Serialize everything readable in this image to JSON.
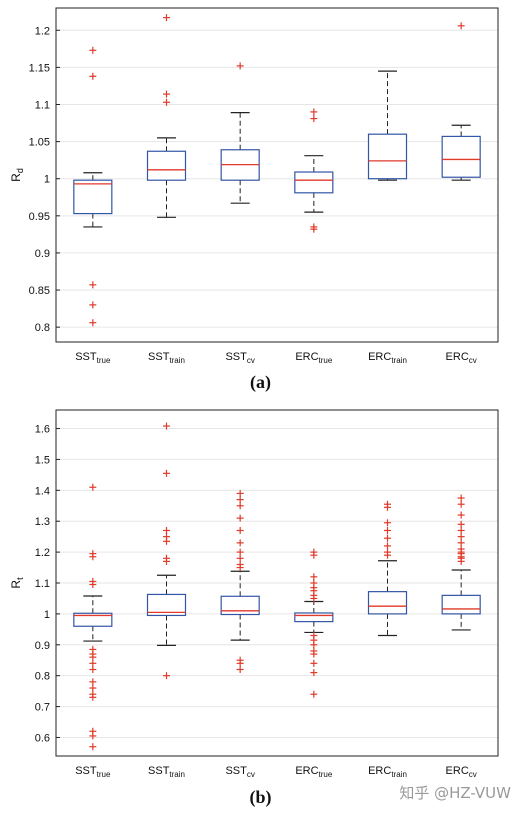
{
  "chart_data": [
    {
      "type": "box",
      "panel_label": "(a)",
      "ylabel": "R",
      "ylabel_subscript": "d",
      "ylim": [
        0.78,
        1.23
      ],
      "yticks": [
        0.8,
        0.85,
        0.9,
        0.95,
        1,
        1.05,
        1.1,
        1.15,
        1.2
      ],
      "grid": true,
      "colors": {
        "box": "#3355a5",
        "median": "#e03a2a",
        "whisker": "#222222",
        "outlier": "#e03a2a",
        "grid": "#e6e6e6"
      },
      "categories": [
        {
          "base": "SST",
          "sub": "true"
        },
        {
          "base": "SST",
          "sub": "train"
        },
        {
          "base": "SST",
          "sub": "cv"
        },
        {
          "base": "ERC",
          "sub": "true"
        },
        {
          "base": "ERC",
          "sub": "train"
        },
        {
          "base": "ERC",
          "sub": "cv"
        }
      ],
      "boxes": [
        {
          "q1": 0.953,
          "median": 0.993,
          "q3": 0.998,
          "whisker_low": 0.935,
          "whisker_high": 1.008,
          "outliers": [
            1.173,
            1.138,
            0.857,
            0.83,
            0.806
          ]
        },
        {
          "q1": 0.998,
          "median": 1.012,
          "q3": 1.037,
          "whisker_low": 0.948,
          "whisker_high": 1.055,
          "outliers": [
            1.217,
            1.114,
            1.103
          ]
        },
        {
          "q1": 0.998,
          "median": 1.019,
          "q3": 1.039,
          "whisker_low": 0.967,
          "whisker_high": 1.089,
          "outliers": [
            1.152
          ]
        },
        {
          "q1": 0.981,
          "median": 0.998,
          "q3": 1.009,
          "whisker_low": 0.955,
          "whisker_high": 1.031,
          "outliers": [
            1.09,
            1.081,
            0.935,
            0.932
          ]
        },
        {
          "q1": 1.0,
          "median": 1.024,
          "q3": 1.06,
          "whisker_low": 0.998,
          "whisker_high": 1.145,
          "outliers": []
        },
        {
          "q1": 1.002,
          "median": 1.026,
          "q3": 1.057,
          "whisker_low": 0.998,
          "whisker_high": 1.072,
          "outliers": [
            1.206
          ]
        }
      ]
    },
    {
      "type": "box",
      "panel_label": "(b)",
      "ylabel": "R",
      "ylabel_subscript": "t",
      "ylim": [
        0.54,
        1.66
      ],
      "yticks": [
        0.6,
        0.7,
        0.8,
        0.9,
        1,
        1.1,
        1.2,
        1.3,
        1.4,
        1.5,
        1.6
      ],
      "grid": true,
      "colors": {
        "box": "#3355a5",
        "median": "#e03a2a",
        "whisker": "#222222",
        "outlier": "#e03a2a",
        "grid": "#e6e6e6"
      },
      "categories": [
        {
          "base": "SST",
          "sub": "true"
        },
        {
          "base": "SST",
          "sub": "train"
        },
        {
          "base": "SST",
          "sub": "cv"
        },
        {
          "base": "ERC",
          "sub": "true"
        },
        {
          "base": "ERC",
          "sub": "train"
        },
        {
          "base": "ERC",
          "sub": "cv"
        }
      ],
      "boxes": [
        {
          "q1": 0.96,
          "median": 0.995,
          "q3": 1.002,
          "whisker_low": 0.912,
          "whisker_high": 1.058,
          "outliers": [
            1.41,
            1.195,
            1.185,
            1.105,
            1.095,
            0.885,
            0.87,
            0.86,
            0.84,
            0.82,
            0.78,
            0.76,
            0.74,
            0.73,
            0.62,
            0.605,
            0.57
          ]
        },
        {
          "q1": 0.995,
          "median": 1.005,
          "q3": 1.063,
          "whisker_low": 0.898,
          "whisker_high": 1.125,
          "outliers": [
            1.608,
            1.455,
            1.27,
            1.25,
            1.235,
            1.18,
            1.17,
            0.8
          ]
        },
        {
          "q1": 0.998,
          "median": 1.01,
          "q3": 1.057,
          "whisker_low": 0.915,
          "whisker_high": 1.138,
          "outliers": [
            1.39,
            1.37,
            1.35,
            1.31,
            1.27,
            1.23,
            1.2,
            1.18,
            1.16,
            1.15,
            0.85,
            0.84,
            0.82
          ]
        },
        {
          "q1": 0.975,
          "median": 0.995,
          "q3": 1.003,
          "whisker_low": 0.94,
          "whisker_high": 1.04,
          "outliers": [
            1.2,
            1.19,
            1.12,
            1.1,
            1.085,
            1.075,
            1.06,
            1.05,
            0.93,
            0.915,
            0.9,
            0.88,
            0.87,
            0.84,
            0.81,
            0.74
          ]
        },
        {
          "q1": 1.0,
          "median": 1.025,
          "q3": 1.072,
          "whisker_low": 0.93,
          "whisker_high": 1.172,
          "outliers": [
            1.355,
            1.345,
            1.295,
            1.27,
            1.245,
            1.22,
            1.2,
            1.19
          ]
        },
        {
          "q1": 1.0,
          "median": 1.016,
          "q3": 1.06,
          "whisker_low": 0.948,
          "whisker_high": 1.142,
          "outliers": [
            1.375,
            1.355,
            1.32,
            1.29,
            1.27,
            1.25,
            1.23,
            1.21,
            1.2,
            1.195,
            1.185,
            1.18,
            1.17
          ]
        }
      ]
    }
  ],
  "watermark": "知乎 @HZ-VUW"
}
